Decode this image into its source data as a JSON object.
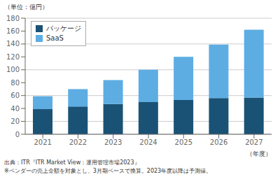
{
  "chart_data": {
    "type": "bar",
    "stacked": true,
    "categories": [
      "2021",
      "2022",
      "2023",
      "2024",
      "2025",
      "2026",
      "2027"
    ],
    "series": [
      {
        "name": "パッケージ",
        "color": "#1a5276",
        "values": [
          39,
          43,
          47,
          50,
          53,
          56,
          57
        ]
      },
      {
        "name": "SaaS",
        "color": "#5dade2",
        "values": [
          20,
          27,
          37,
          50,
          67,
          83,
          105
        ]
      }
    ],
    "ylim": [
      0,
      180
    ],
    "yticks": [
      0,
      20,
      40,
      60,
      80,
      100,
      120,
      140,
      160,
      180
    ],
    "grid": true,
    "legend": "upper left",
    "ylabel": "（単位：億円）",
    "xlabel": "（年度）",
    "annotations": [
      "出典：ITR『ITR Market View：運用管理市場2023』",
      "※ベンダーの売上金額を対象とし、3月期ベースで換算。2023年度以降は予測値。"
    ]
  }
}
